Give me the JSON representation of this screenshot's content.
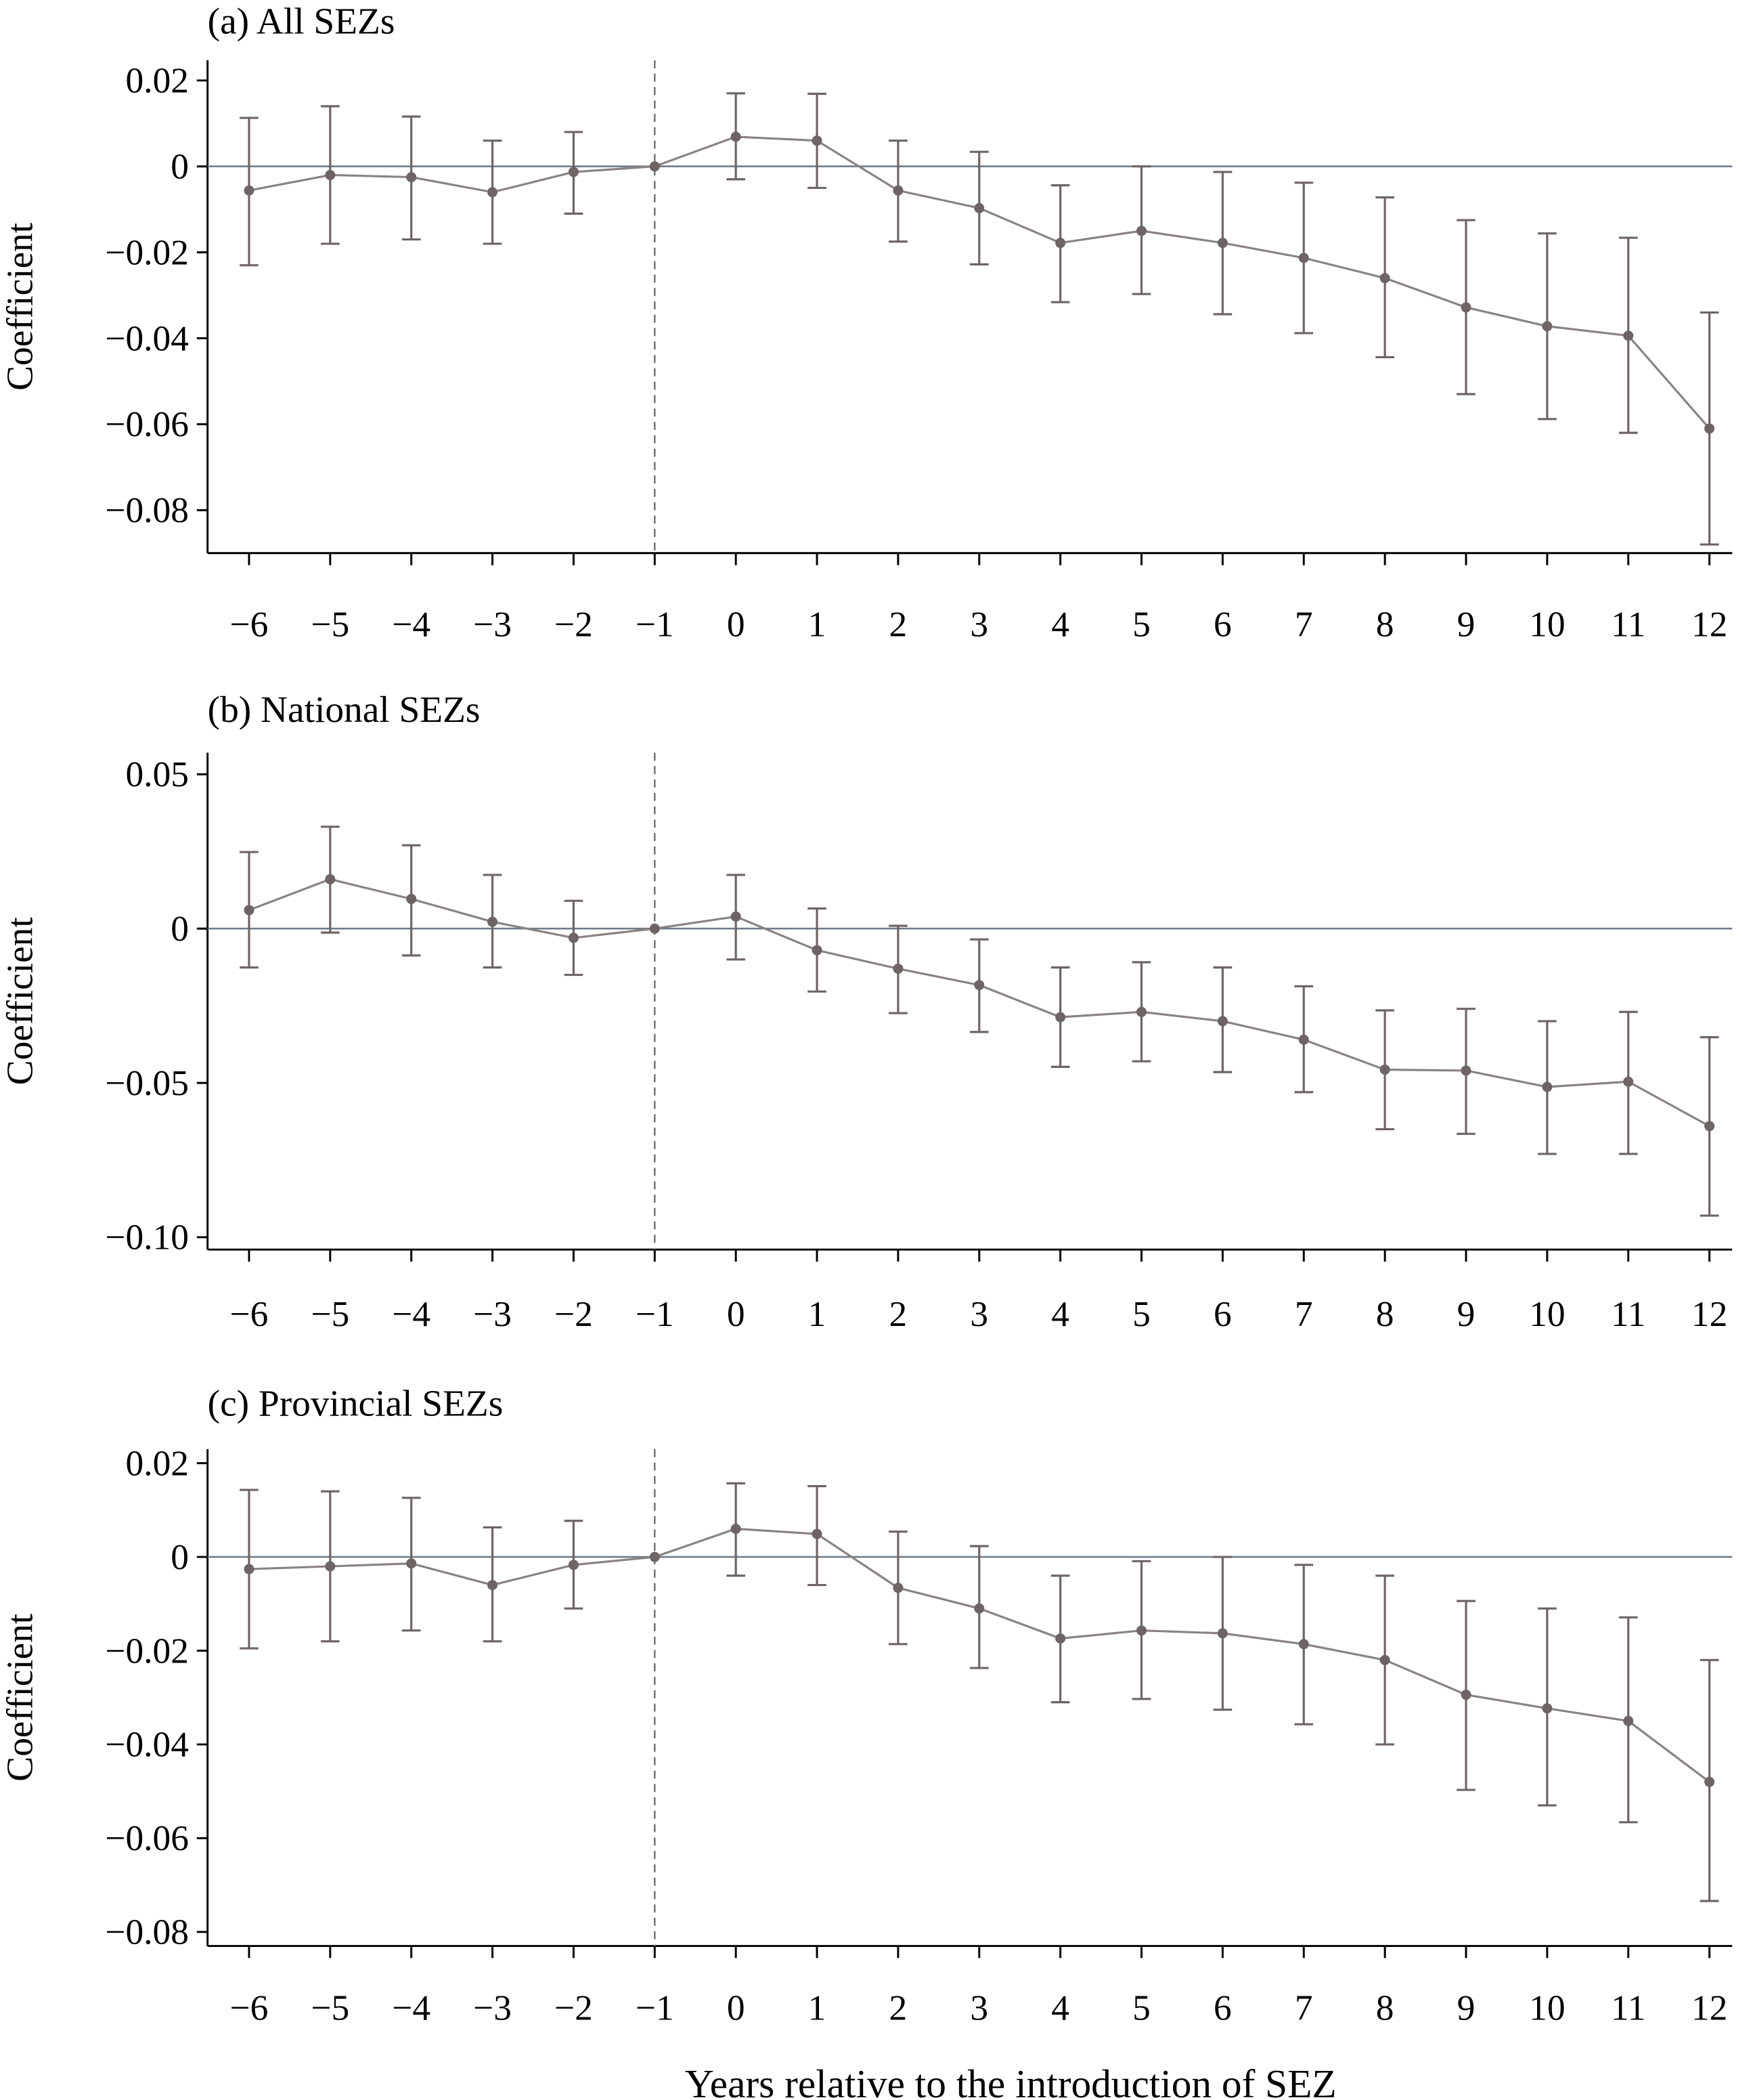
{
  "colors": {
    "series": "#6e6464",
    "line": "#8a8282",
    "zero_line": "#6f7b8a",
    "ref_line": "#777777",
    "axis": "#000000"
  },
  "xlabel": "Years relative to the introduction of SEZ",
  "chart_data": [
    {
      "type": "line",
      "title": "(a) All SEZs",
      "ylabel": "Coefficient",
      "x": [
        -6,
        -5,
        -4,
        -3,
        -2,
        -1,
        0,
        1,
        2,
        3,
        4,
        5,
        6,
        7,
        8,
        9,
        10,
        11,
        12
      ],
      "x_tick_labels": [
        "−6",
        "−5",
        "−4",
        "−3",
        "−2",
        "−1",
        "0",
        "1",
        "2",
        "3",
        "4",
        "5",
        "6",
        "7",
        "8",
        "9",
        "10",
        "11",
        "12"
      ],
      "y_ticks": [
        0.02,
        0,
        -0.02,
        -0.04,
        -0.06,
        -0.08
      ],
      "y_tick_labels": [
        "0.02",
        "0",
        "−0.02",
        "−0.04",
        "−0.06",
        "−0.08"
      ],
      "ylim": [
        -0.09,
        0.0247
      ],
      "reference_x": -1,
      "coef": [
        -0.0056,
        -0.002,
        -0.0025,
        -0.006,
        -0.0013,
        0,
        0.0069,
        0.006,
        -0.0056,
        -0.0097,
        -0.0178,
        -0.015,
        -0.0178,
        -0.0213,
        -0.026,
        -0.0328,
        -0.0372,
        -0.0394,
        -0.061
      ],
      "ci_upper": [
        0.0113,
        0.014,
        0.0116,
        0.006,
        0.008,
        null,
        0.017,
        0.0169,
        0.006,
        0.0034,
        -0.0044,
        0,
        -0.0013,
        -0.0038,
        -0.0072,
        -0.0125,
        -0.0156,
        -0.0166,
        -0.034
      ],
      "ci_lower": [
        -0.023,
        -0.018,
        -0.017,
        -0.018,
        -0.011,
        null,
        -0.003,
        -0.005,
        -0.0175,
        -0.0228,
        -0.0316,
        -0.0297,
        -0.0344,
        -0.0388,
        -0.0444,
        -0.053,
        -0.0588,
        -0.062,
        -0.088
      ]
    },
    {
      "type": "line",
      "title": "(b) National SEZs",
      "ylabel": "Coefficient",
      "x": [
        -6,
        -5,
        -4,
        -3,
        -2,
        -1,
        0,
        1,
        2,
        3,
        4,
        5,
        6,
        7,
        8,
        9,
        10,
        11,
        12
      ],
      "x_tick_labels": [
        "−6",
        "−5",
        "−4",
        "−3",
        "−2",
        "−1",
        "0",
        "1",
        "2",
        "3",
        "4",
        "5",
        "6",
        "7",
        "8",
        "9",
        "10",
        "11",
        "12"
      ],
      "y_ticks": [
        0.05,
        0,
        -0.05,
        -0.1
      ],
      "y_tick_labels": [
        "0.05",
        "0",
        "−0.05",
        "−0.10"
      ],
      "ylim": [
        -0.104,
        0.057
      ],
      "reference_x": -1,
      "coef": [
        0.006,
        0.016,
        0.0096,
        0.0022,
        -0.003,
        0,
        0.0039,
        -0.007,
        -0.013,
        -0.0183,
        -0.0287,
        -0.027,
        -0.03,
        -0.036,
        -0.0457,
        -0.046,
        -0.0513,
        -0.0496,
        -0.064
      ],
      "ci_upper": [
        0.0248,
        0.033,
        0.027,
        0.0174,
        0.009,
        null,
        0.0174,
        0.0065,
        0.0009,
        -0.0035,
        -0.0126,
        -0.0109,
        -0.0126,
        -0.0187,
        -0.0265,
        -0.026,
        -0.03,
        -0.027,
        -0.0352
      ],
      "ci_lower": [
        -0.0126,
        -0.0013,
        -0.0087,
        -0.0126,
        -0.015,
        null,
        -0.01,
        -0.0204,
        -0.0274,
        -0.0335,
        -0.0448,
        -0.043,
        -0.0465,
        -0.053,
        -0.065,
        -0.0665,
        -0.073,
        -0.073,
        -0.093
      ]
    },
    {
      "type": "line",
      "title": "(c) Provincial SEZs",
      "ylabel": "Coefficient",
      "x": [
        -6,
        -5,
        -4,
        -3,
        -2,
        -1,
        0,
        1,
        2,
        3,
        4,
        5,
        6,
        7,
        8,
        9,
        10,
        11,
        12
      ],
      "x_tick_labels": [
        "−6",
        "−5",
        "−4",
        "−3",
        "−2",
        "−1",
        "0",
        "1",
        "2",
        "3",
        "4",
        "5",
        "6",
        "7",
        "8",
        "9",
        "10",
        "11",
        "12"
      ],
      "y_ticks": [
        0.02,
        0,
        -0.02,
        -0.04,
        -0.06,
        -0.08
      ],
      "y_tick_labels": [
        "0.02",
        "0",
        "−0.02",
        "−0.04",
        "−0.06",
        "−0.08"
      ],
      "ylim": [
        -0.083,
        0.023
      ],
      "reference_x": -1,
      "coef": [
        -0.0026,
        -0.002,
        -0.0014,
        -0.006,
        -0.0017,
        0,
        0.006,
        0.0049,
        -0.0066,
        -0.011,
        -0.0174,
        -0.0157,
        -0.0163,
        -0.0186,
        -0.022,
        -0.0294,
        -0.0323,
        -0.035,
        -0.048
      ],
      "ci_upper": [
        0.0143,
        0.014,
        0.0126,
        0.0063,
        0.0077,
        null,
        0.0157,
        0.0151,
        0.0054,
        0.0023,
        -0.004,
        -0.0009,
        0,
        -0.0017,
        -0.004,
        -0.0094,
        -0.011,
        -0.0129,
        -0.022
      ],
      "ci_lower": [
        -0.0195,
        -0.018,
        -0.0157,
        -0.018,
        -0.011,
        null,
        -0.004,
        -0.006,
        -0.0186,
        -0.0237,
        -0.031,
        -0.0303,
        -0.0326,
        -0.0357,
        -0.04,
        -0.0497,
        -0.053,
        -0.0566,
        -0.0734
      ]
    }
  ]
}
